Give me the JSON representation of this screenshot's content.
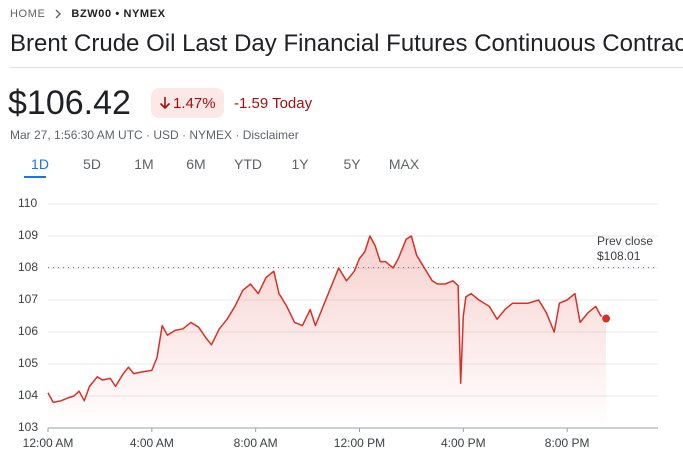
{
  "breadcrumb": {
    "home": "HOME",
    "current": "BZW00 • NYMEX"
  },
  "title": "Brent Crude Oil Last Day Financial Futures Continuous Contract",
  "price": "$106.42",
  "change_percent": "1.47%",
  "change_today": "-1.59 Today",
  "subtitle": "Mar 27, 1:56:30 AM UTC · USD · NYMEX · Disclaimer",
  "tabs": [
    "1D",
    "5D",
    "1M",
    "6M",
    "YTD",
    "1Y",
    "5Y",
    "MAX"
  ],
  "active_tab": 0,
  "chart_data": {
    "type": "area",
    "color": "#d93025",
    "x": [
      0,
      0.2,
      0.5,
      0.8,
      1.0,
      1.2,
      1.4,
      1.6,
      1.9,
      2.1,
      2.4,
      2.6,
      2.9,
      3.1,
      3.3,
      3.6,
      4.0,
      4.2,
      4.4,
      4.6,
      4.9,
      5.2,
      5.5,
      5.8,
      6.1,
      6.3,
      6.6,
      6.9,
      7.2,
      7.5,
      7.8,
      8.1,
      8.4,
      8.7,
      8.9,
      9.2,
      9.5,
      9.8,
      10.1,
      10.3,
      10.6,
      10.9,
      11.2,
      11.5,
      11.8,
      12.0,
      12.2,
      12.4,
      12.6,
      12.8,
      13.0,
      13.3,
      13.5,
      13.8,
      14.0,
      14.2,
      14.5,
      14.8,
      15.0,
      15.3,
      15.6,
      15.8,
      15.9,
      16.0,
      16.1,
      16.3,
      16.6,
      17.0,
      17.3,
      17.6,
      17.9,
      18.2,
      18.5,
      18.9,
      19.2,
      19.5,
      19.7,
      20.0,
      20.3,
      20.5,
      20.8,
      21.1,
      21.3,
      21.5
    ],
    "values": [
      104.1,
      103.8,
      103.85,
      103.95,
      104.0,
      104.15,
      103.85,
      104.3,
      104.6,
      104.5,
      104.55,
      104.3,
      104.7,
      104.9,
      104.7,
      104.75,
      104.8,
      105.2,
      106.2,
      105.9,
      106.05,
      106.1,
      106.3,
      106.15,
      105.8,
      105.6,
      106.1,
      106.4,
      106.8,
      107.3,
      107.5,
      107.2,
      107.7,
      107.9,
      107.2,
      106.8,
      106.3,
      106.2,
      106.7,
      106.2,
      106.8,
      107.4,
      108.0,
      107.6,
      107.9,
      108.3,
      108.5,
      109.0,
      108.7,
      108.2,
      108.2,
      108.0,
      108.3,
      108.9,
      109.0,
      108.4,
      108.0,
      107.6,
      107.5,
      107.5,
      107.6,
      107.45,
      104.4,
      106.5,
      107.1,
      107.2,
      107.0,
      106.8,
      106.4,
      106.7,
      106.9,
      106.9,
      106.9,
      107.0,
      106.6,
      106.0,
      106.9,
      107.0,
      107.2,
      106.3,
      106.6,
      106.8,
      106.5,
      106.42
    ],
    "xlim": [
      0,
      23.5
    ],
    "ylim": [
      103,
      110
    ],
    "yticks": [
      103,
      104,
      105,
      106,
      107,
      108,
      109,
      110
    ],
    "xticks": [
      {
        "value": 0,
        "label": "12:00 AM"
      },
      {
        "value": 4,
        "label": "4:00 AM"
      },
      {
        "value": 8,
        "label": "8:00 AM"
      },
      {
        "value": 12,
        "label": "12:00 PM"
      },
      {
        "value": 16,
        "label": "4:00 PM"
      },
      {
        "value": 20,
        "label": "8:00 PM"
      }
    ],
    "grid": true,
    "prev_close": {
      "name": "Prev close",
      "value": 108.01,
      "value_label": "$108.01"
    }
  }
}
